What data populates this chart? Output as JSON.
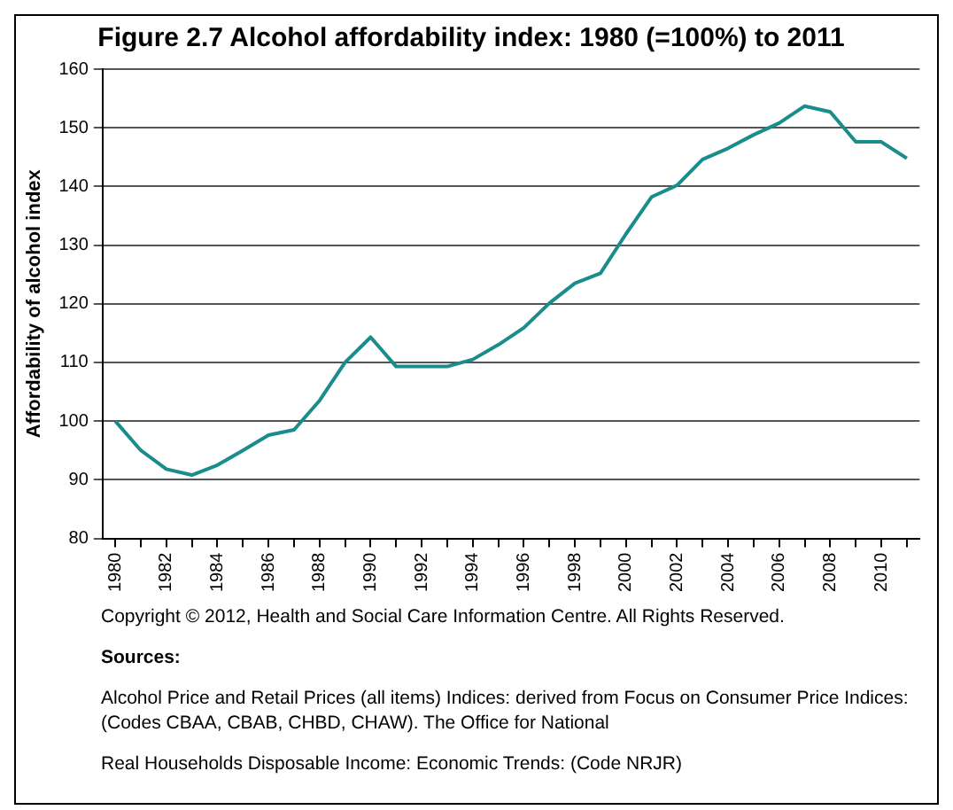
{
  "chart_data": {
    "type": "line",
    "title": "Figure 2.7 Alcohol affordability index: 1980 (=100%) to 2011",
    "ylabel": "Affordability of alcohol index",
    "categories": [
      "1980",
      null,
      "1982",
      null,
      "1984",
      null,
      "1986",
      null,
      "1988",
      null,
      "1990",
      null,
      "1992",
      null,
      "1994",
      null,
      "1996",
      null,
      "1998",
      null,
      "2000",
      null,
      "2002",
      null,
      "2004",
      null,
      "2006",
      null,
      "2008",
      null,
      "2010",
      null
    ],
    "series": [
      {
        "color": "#1a8c8c",
        "values": [
          100,
          95,
          91.8,
          90.8,
          92.5,
          95,
          97.6,
          98.5,
          103.5,
          110,
          114.3,
          109.3,
          109.3,
          109.3,
          110.5,
          113,
          115.9,
          120.1,
          123.5,
          125.2,
          131.9,
          138.2,
          140.2,
          144.6,
          146.5,
          148.8,
          150.8,
          153.7,
          152.7,
          147.6,
          147.6,
          144.8
        ]
      }
    ],
    "ylim": [
      80,
      160
    ],
    "yticks": [
      80,
      90,
      100,
      110,
      120,
      130,
      140,
      150,
      160
    ],
    "grid": "y",
    "legend": false,
    "marker": "none",
    "line_style": "solid",
    "annotations": [
      "Copyright © 2012, Health and Social Care Information Centre. All Rights Reserved.",
      "Sources:",
      "Alcohol Price and Retail Prices (all items) Indices: derived from Focus on Consumer Price Indices: (Codes CBAA, CBAB, CHBD, CHAW). The Office for National",
      "Real Households Disposable Income: Economic Trends: (Code NRJR)"
    ]
  }
}
